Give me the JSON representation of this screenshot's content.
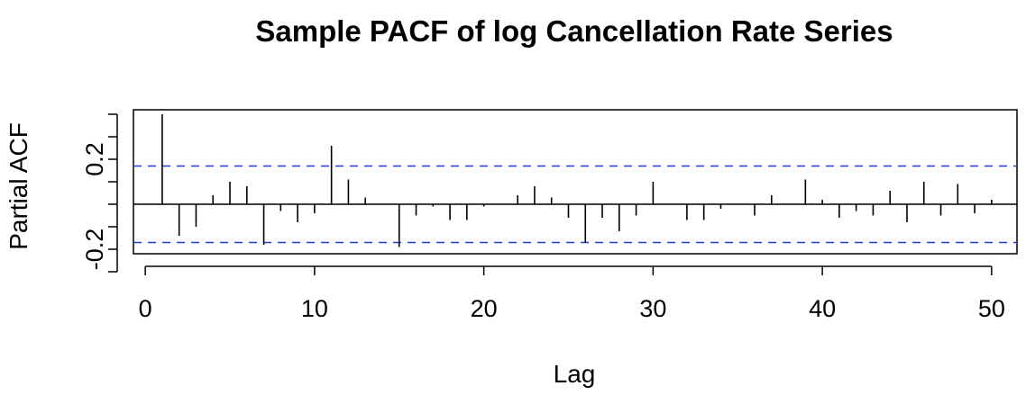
{
  "chart_data": {
    "type": "bar",
    "title": "Sample PACF of log Cancellation Rate Series",
    "xlabel": "Lag",
    "ylabel": "Partial ACF",
    "x": [
      1,
      2,
      3,
      4,
      5,
      6,
      7,
      8,
      9,
      10,
      11,
      12,
      13,
      14,
      15,
      16,
      17,
      18,
      19,
      20,
      21,
      22,
      23,
      24,
      25,
      26,
      27,
      28,
      29,
      30,
      31,
      32,
      33,
      34,
      35,
      36,
      37,
      38,
      39,
      40,
      41,
      42,
      43,
      44,
      45,
      46,
      47,
      48,
      49,
      50
    ],
    "values": [
      0.4,
      -0.14,
      -0.1,
      0.04,
      0.1,
      0.08,
      -0.18,
      -0.03,
      -0.08,
      -0.04,
      0.26,
      0.11,
      0.03,
      0.0,
      -0.19,
      -0.05,
      -0.01,
      -0.07,
      -0.07,
      -0.01,
      0.0,
      0.04,
      0.08,
      0.03,
      -0.06,
      -0.17,
      -0.06,
      -0.12,
      -0.05,
      0.1,
      0.0,
      -0.07,
      -0.07,
      -0.02,
      0.0,
      -0.05,
      0.04,
      0.0,
      0.11,
      0.02,
      -0.06,
      -0.03,
      -0.05,
      0.06,
      -0.08,
      0.1,
      -0.05,
      0.09,
      -0.04,
      0.02
    ],
    "confidence_bound": 0.17,
    "xlim": [
      -0.7,
      51.5
    ],
    "ylim": [
      -0.22,
      0.42
    ],
    "xticks": [
      0,
      10,
      20,
      30,
      40,
      50
    ],
    "yticks": [
      -0.2,
      0.2
    ],
    "ytick_labels": [
      "-0.2",
      "0.2"
    ],
    "ytick_minor": [
      -0.3,
      -0.1,
      0.0,
      0.1,
      0.3,
      0.4
    ],
    "bound_color": "#1f3fd1",
    "grid": false
  }
}
